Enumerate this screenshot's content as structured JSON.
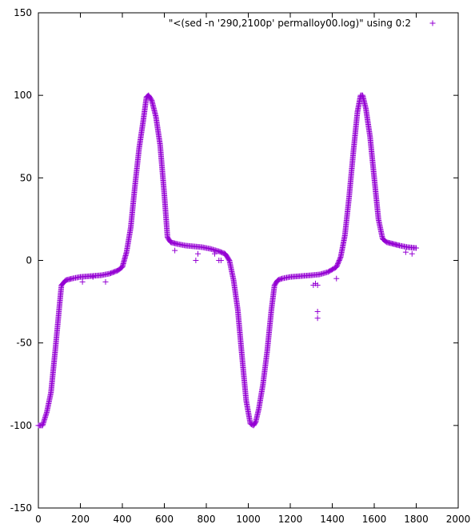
{
  "chart_data": {
    "type": "scatter",
    "title": "",
    "xlabel": "",
    "ylabel": "",
    "xlim": [
      0,
      2000
    ],
    "ylim": [
      -150,
      150
    ],
    "x_ticks": [
      0,
      200,
      400,
      600,
      800,
      1000,
      1200,
      1400,
      1600,
      1800,
      2000
    ],
    "y_ticks": [
      -150,
      -100,
      -50,
      0,
      50,
      100,
      150
    ],
    "x_tick_labels": [
      "0",
      "200",
      "400",
      "600",
      "800",
      "1000",
      "1200",
      "1400",
      "1600",
      "1800",
      "2000"
    ],
    "y_tick_labels": [
      "-150",
      "-100",
      "-50",
      "0",
      "50",
      "100",
      "150"
    ],
    "grid": false,
    "legend_position": "top-right",
    "marker": "plus",
    "series_color": "#9400d3",
    "series": [
      {
        "name": "\"<(sed -n '290,2100p' permalloy00.log)\" using 0:2",
        "x": [
          0,
          20,
          40,
          60,
          80,
          100,
          110,
          130,
          160,
          200,
          250,
          300,
          340,
          380,
          400,
          420,
          440,
          460,
          480,
          500,
          515,
          525,
          540,
          560,
          580,
          600,
          615,
          630,
          660,
          700,
          740,
          780,
          820,
          860,
          890,
          910,
          930,
          950,
          970,
          990,
          1010,
          1025,
          1035,
          1050,
          1070,
          1090,
          1110,
          1125,
          1140,
          1160,
          1200,
          1250,
          1300,
          1340,
          1380,
          1420,
          1440,
          1460,
          1480,
          1500,
          1520,
          1535,
          1545,
          1560,
          1580,
          1600,
          1620,
          1640,
          1660,
          1690,
          1720,
          1760,
          1800,
          210,
          260,
          320,
          650,
          750,
          760,
          840,
          860,
          870,
          1310,
          1320,
          1330,
          1330,
          1330,
          1420,
          1750,
          1780
        ],
        "y": [
          -100,
          -100,
          -92,
          -80,
          -55,
          -28,
          -15,
          -12,
          -11,
          -10,
          -9.5,
          -9,
          -8,
          -6,
          -4,
          5,
          20,
          45,
          68,
          85,
          99,
          100,
          97,
          87,
          70,
          40,
          14,
          11,
          10,
          9,
          8.5,
          8,
          7,
          5.5,
          4,
          0,
          -12,
          -30,
          -58,
          -85,
          -99,
          -100,
          -98,
          -90,
          -75,
          -55,
          -30,
          -15,
          -12,
          -11,
          -10,
          -9.5,
          -9,
          -8.5,
          -7,
          -4,
          2,
          15,
          38,
          65,
          90,
          100,
          100,
          92,
          75,
          50,
          25,
          13,
          11,
          10,
          9,
          8,
          7.5,
          -13,
          -10,
          -13,
          6,
          0,
          4,
          4,
          0,
          0,
          -15,
          -14,
          -15,
          -31,
          -35,
          -11,
          5,
          4
        ]
      }
    ]
  }
}
